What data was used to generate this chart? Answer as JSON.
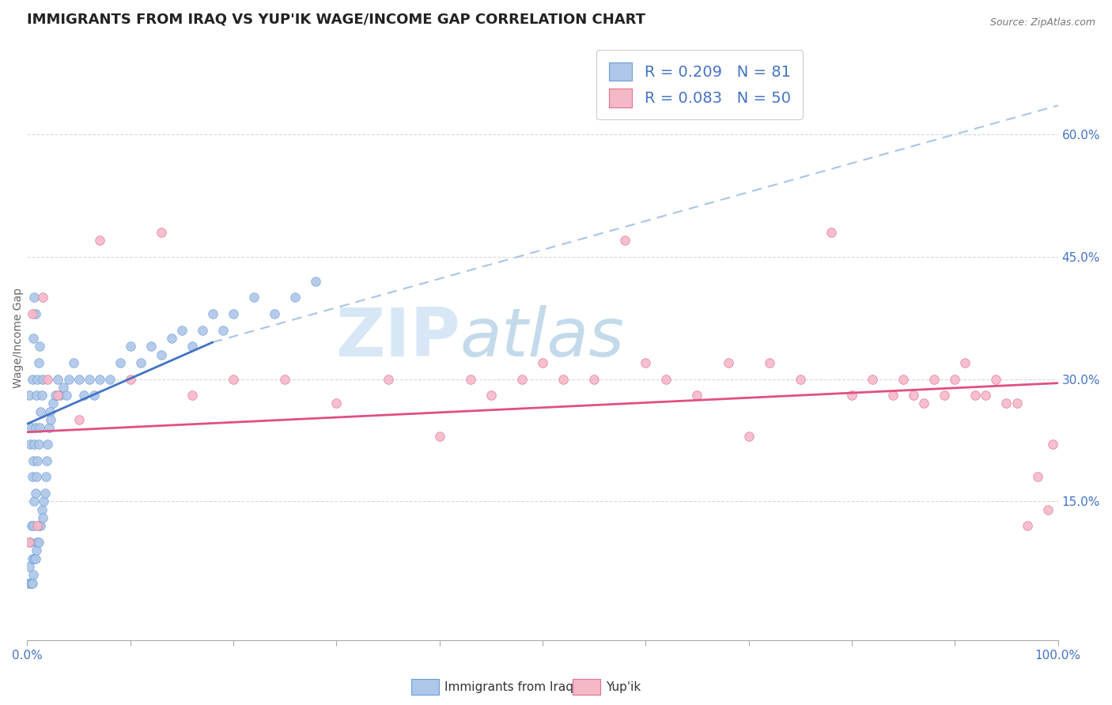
{
  "title": "IMMIGRANTS FROM IRAQ VS YUP'IK WAGE/INCOME GAP CORRELATION CHART",
  "source_text": "Source: ZipAtlas.com",
  "ylabel": "Wage/Income Gap",
  "xlim": [
    0,
    1.0
  ],
  "ylim": [
    -0.02,
    0.72
  ],
  "xticks": [
    0.0,
    0.1,
    0.2,
    0.3,
    0.4,
    0.5,
    0.6,
    0.7,
    0.8,
    0.9,
    1.0
  ],
  "xticklabels": [
    "0.0%",
    "",
    "",
    "",
    "",
    "",
    "",
    "",
    "",
    "",
    "100.0%"
  ],
  "ytick_positions": [
    0.15,
    0.3,
    0.45,
    0.6
  ],
  "ytick_labels": [
    "15.0%",
    "30.0%",
    "45.0%",
    "60.0%"
  ],
  "iraq_color": "#aec6e8",
  "iraq_edge_color": "#6a9fd8",
  "yupik_color": "#f5b8c8",
  "yupik_edge_color": "#e07090",
  "iraq_line_color": "#4472c4",
  "yupik_line_color": "#e05080",
  "dashed_line_color": "#aac4e8",
  "R_iraq": 0.209,
  "N_iraq": 81,
  "R_yupik": 0.083,
  "N_yupik": 50,
  "legend_label_iraq": "Immigrants from Iraq",
  "legend_label_yupik": "Yup'ik",
  "watermark_zip": "ZIP",
  "watermark_atlas": "atlas",
  "background_color": "#ffffff",
  "iraq_scatter_x": [
    0.001,
    0.002,
    0.002,
    0.003,
    0.003,
    0.003,
    0.004,
    0.004,
    0.004,
    0.005,
    0.005,
    0.005,
    0.005,
    0.006,
    0.006,
    0.006,
    0.006,
    0.007,
    0.007,
    0.007,
    0.007,
    0.008,
    0.008,
    0.008,
    0.008,
    0.009,
    0.009,
    0.009,
    0.01,
    0.01,
    0.01,
    0.011,
    0.011,
    0.011,
    0.012,
    0.012,
    0.012,
    0.013,
    0.013,
    0.014,
    0.014,
    0.015,
    0.015,
    0.016,
    0.017,
    0.018,
    0.019,
    0.02,
    0.021,
    0.022,
    0.023,
    0.025,
    0.027,
    0.03,
    0.032,
    0.035,
    0.038,
    0.04,
    0.045,
    0.05,
    0.055,
    0.06,
    0.065,
    0.07,
    0.08,
    0.09,
    0.1,
    0.11,
    0.12,
    0.13,
    0.14,
    0.15,
    0.16,
    0.17,
    0.18,
    0.19,
    0.2,
    0.22,
    0.24,
    0.26,
    0.28
  ],
  "iraq_scatter_y": [
    0.05,
    0.07,
    0.28,
    0.05,
    0.1,
    0.22,
    0.05,
    0.12,
    0.24,
    0.05,
    0.08,
    0.18,
    0.3,
    0.06,
    0.12,
    0.2,
    0.35,
    0.08,
    0.15,
    0.22,
    0.4,
    0.08,
    0.16,
    0.24,
    0.38,
    0.09,
    0.18,
    0.28,
    0.1,
    0.2,
    0.3,
    0.1,
    0.22,
    0.32,
    0.12,
    0.24,
    0.34,
    0.12,
    0.26,
    0.14,
    0.28,
    0.13,
    0.3,
    0.15,
    0.16,
    0.18,
    0.2,
    0.22,
    0.24,
    0.26,
    0.25,
    0.27,
    0.28,
    0.3,
    0.28,
    0.29,
    0.28,
    0.3,
    0.32,
    0.3,
    0.28,
    0.3,
    0.28,
    0.3,
    0.3,
    0.32,
    0.34,
    0.32,
    0.34,
    0.33,
    0.35,
    0.36,
    0.34,
    0.36,
    0.38,
    0.36,
    0.38,
    0.4,
    0.38,
    0.4,
    0.42
  ],
  "yupik_scatter_x": [
    0.002,
    0.005,
    0.01,
    0.015,
    0.02,
    0.03,
    0.05,
    0.07,
    0.1,
    0.13,
    0.16,
    0.2,
    0.25,
    0.3,
    0.35,
    0.4,
    0.43,
    0.45,
    0.48,
    0.5,
    0.52,
    0.55,
    0.58,
    0.6,
    0.62,
    0.65,
    0.68,
    0.7,
    0.72,
    0.75,
    0.78,
    0.8,
    0.82,
    0.84,
    0.85,
    0.86,
    0.87,
    0.88,
    0.89,
    0.9,
    0.91,
    0.92,
    0.93,
    0.94,
    0.95,
    0.96,
    0.97,
    0.98,
    0.99,
    0.995
  ],
  "yupik_scatter_y": [
    0.1,
    0.38,
    0.12,
    0.4,
    0.3,
    0.28,
    0.25,
    0.47,
    0.3,
    0.48,
    0.28,
    0.3,
    0.3,
    0.27,
    0.3,
    0.23,
    0.3,
    0.28,
    0.3,
    0.32,
    0.3,
    0.3,
    0.47,
    0.32,
    0.3,
    0.28,
    0.32,
    0.23,
    0.32,
    0.3,
    0.48,
    0.28,
    0.3,
    0.28,
    0.3,
    0.28,
    0.27,
    0.3,
    0.28,
    0.3,
    0.32,
    0.28,
    0.28,
    0.3,
    0.27,
    0.27,
    0.12,
    0.18,
    0.14,
    0.22
  ],
  "iraq_trend_x0": 0.0,
  "iraq_trend_y0": 0.245,
  "iraq_trend_x1": 0.18,
  "iraq_trend_y1": 0.345,
  "iraq_trend_dash_x1": 1.0,
  "iraq_trend_dash_y1": 0.635,
  "yupik_trend_x0": 0.0,
  "yupik_trend_y0": 0.235,
  "yupik_trend_x1": 1.0,
  "yupik_trend_y1": 0.295
}
